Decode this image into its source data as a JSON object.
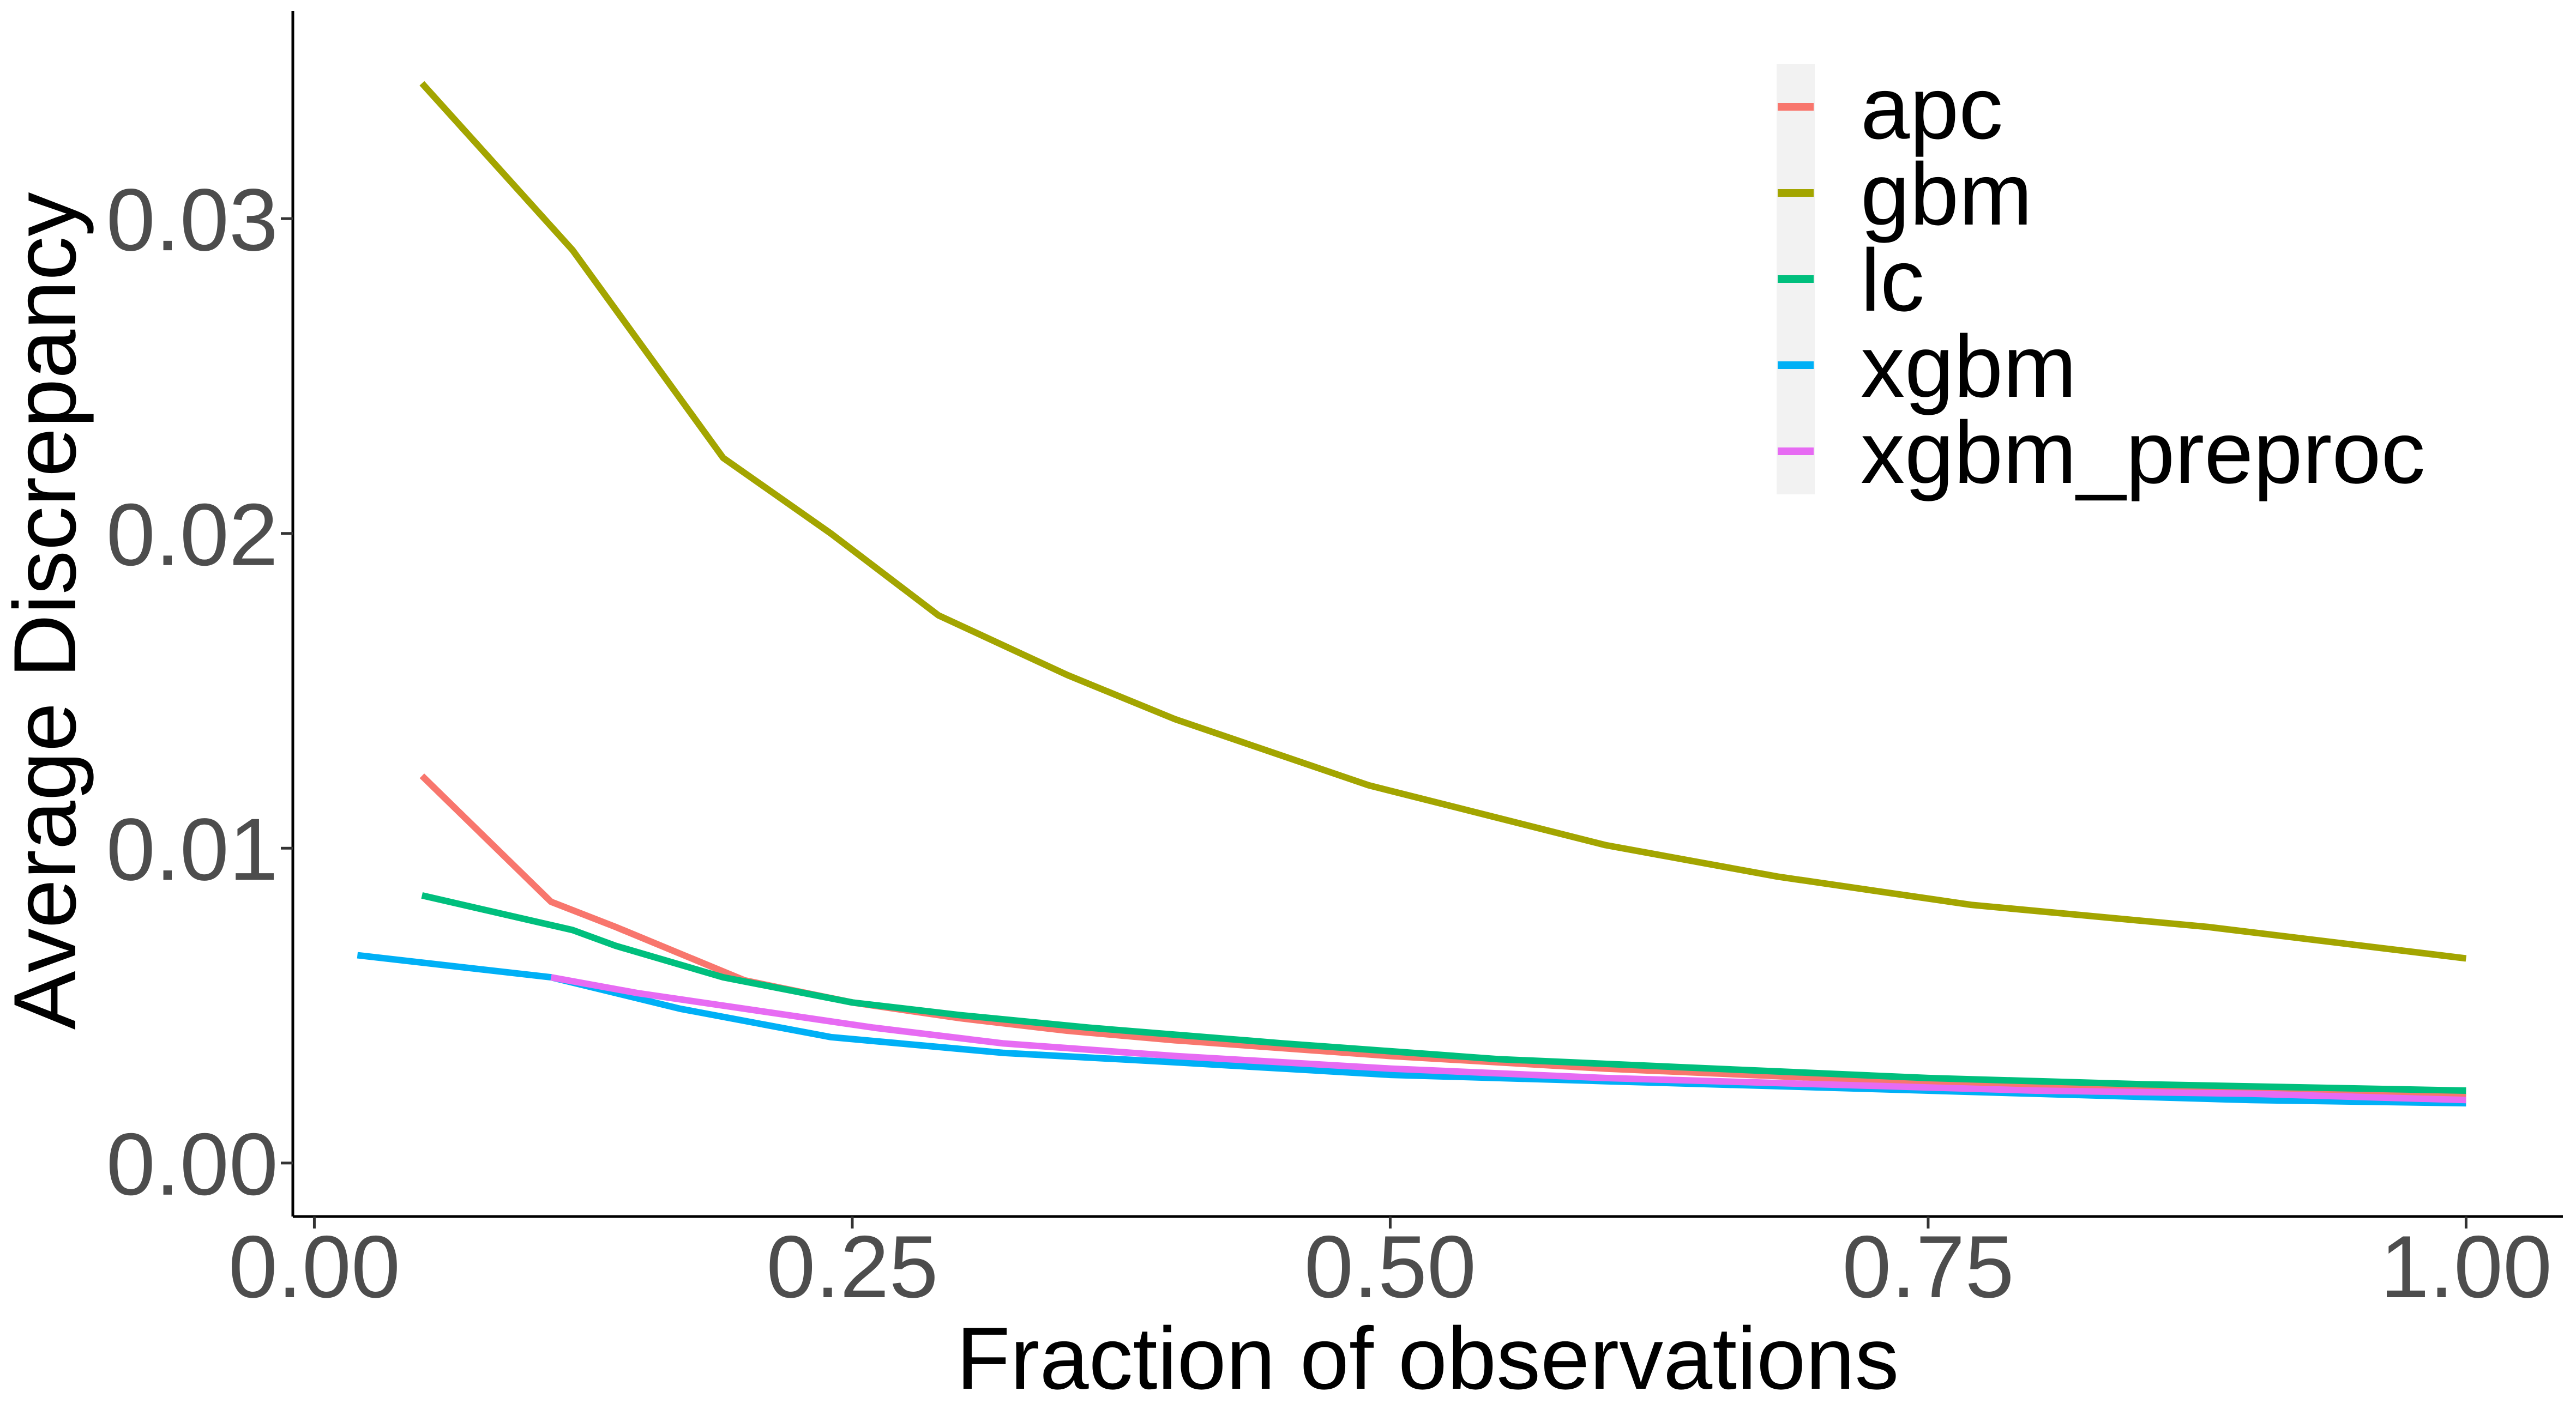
{
  "chart_data": {
    "type": "line",
    "title": "",
    "xlabel": "Fraction of observations",
    "ylabel": "Average Discrepancy",
    "xlim": [
      -0.01,
      1.045
    ],
    "ylim": [
      -0.0017,
      0.0366
    ],
    "x_ticks": [
      0.0,
      0.25,
      0.5,
      0.75,
      1.0
    ],
    "x_tick_labels": [
      "0.00",
      "0.25",
      "0.50",
      "0.75",
      "1.00"
    ],
    "y_ticks": [
      0.0,
      0.01,
      0.02,
      0.03
    ],
    "y_tick_labels": [
      "0.00",
      "0.01",
      "0.02",
      "0.03"
    ],
    "grid": false,
    "legend_position": "top-right",
    "series": [
      {
        "name": "apc",
        "color": "#F8766D",
        "x": [
          0.05,
          0.11,
          0.14,
          0.2,
          0.25,
          0.3,
          0.35,
          0.4,
          0.5,
          0.6,
          0.7,
          0.8,
          0.9,
          1.0
        ],
        "y": [
          0.0123,
          0.0083,
          0.0075,
          0.0058,
          0.0051,
          0.0046,
          0.0042,
          0.0039,
          0.0034,
          0.003,
          0.0027,
          0.0025,
          0.0023,
          0.0021
        ]
      },
      {
        "name": "gbm",
        "color": "#A3A500",
        "x": [
          0.05,
          0.12,
          0.19,
          0.24,
          0.29,
          0.35,
          0.4,
          0.49,
          0.6,
          0.68,
          0.77,
          0.88,
          1.0
        ],
        "y": [
          0.0343,
          0.029,
          0.0224,
          0.02,
          0.0174,
          0.0155,
          0.0141,
          0.012,
          0.0101,
          0.0091,
          0.0082,
          0.0075,
          0.0065
        ]
      },
      {
        "name": "lc",
        "color": "#00BF7D",
        "x": [
          0.05,
          0.12,
          0.14,
          0.19,
          0.25,
          0.3,
          0.36,
          0.45,
          0.55,
          0.65,
          0.75,
          0.85,
          1.0
        ],
        "y": [
          0.0085,
          0.0074,
          0.0069,
          0.0059,
          0.0051,
          0.0047,
          0.0043,
          0.0038,
          0.0033,
          0.003,
          0.0027,
          0.0025,
          0.0023
        ]
      },
      {
        "name": "xgbm",
        "color": "#00B0F6",
        "x": [
          0.02,
          0.11,
          0.17,
          0.24,
          0.32,
          0.4,
          0.5,
          0.6,
          0.7,
          0.8,
          0.9,
          1.0
        ],
        "y": [
          0.0066,
          0.0059,
          0.0049,
          0.004,
          0.0035,
          0.0032,
          0.0028,
          0.0026,
          0.0024,
          0.0022,
          0.002,
          0.0019
        ]
      },
      {
        "name": "xgbm_preproc",
        "color": "#E76BF3",
        "x": [
          0.11,
          0.15,
          0.2,
          0.26,
          0.32,
          0.4,
          0.5,
          0.6,
          0.7,
          0.8,
          0.9,
          1.0
        ],
        "y": [
          0.0059,
          0.0054,
          0.0049,
          0.0043,
          0.0038,
          0.0034,
          0.003,
          0.0027,
          0.0025,
          0.0023,
          0.0022,
          0.002
        ]
      }
    ]
  }
}
